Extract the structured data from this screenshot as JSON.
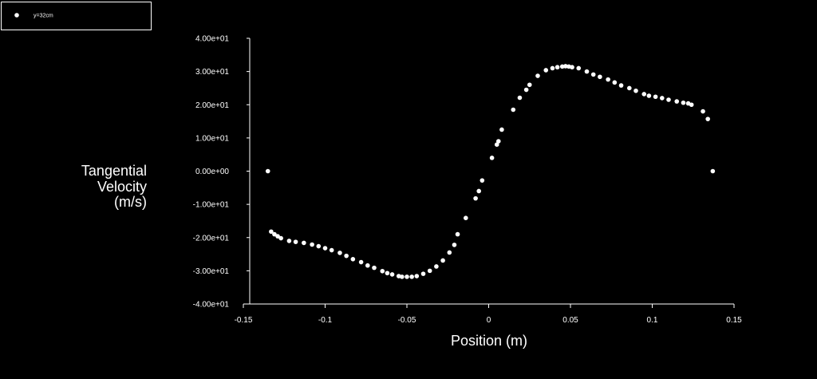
{
  "chart_data": {
    "type": "scatter",
    "xlabel": "Position (m)",
    "ylabel": [
      "Tangential",
      "Velocity",
      "(m/s)"
    ],
    "xlim": [
      -0.15,
      0.15
    ],
    "ylim": [
      -40,
      40
    ],
    "x_ticks": [
      -0.15,
      -0.1,
      -0.05,
      0,
      0.05,
      0.1,
      0.15
    ],
    "x_tick_labels": [
      "-0.15",
      "-0.1",
      "-0.05",
      "0",
      "0.05",
      "0.1",
      "0.15"
    ],
    "y_ticks": [
      40,
      30,
      20,
      10,
      0,
      -10,
      -20,
      -30,
      -40
    ],
    "y_tick_labels": [
      "4.00e+01",
      "3.00e+01",
      "2.00e+01",
      "1.00e+01",
      "0.00e+00",
      "-1.00e+01",
      "-2.00e+01",
      "-3.00e+01",
      "-4.00e+01"
    ],
    "grid": false,
    "legend_position": "top-left",
    "series": [
      {
        "name": "y=32cm",
        "color": "#ffffff",
        "marker": "circle",
        "points": [
          [
            -0.135,
            0
          ],
          [
            -0.133,
            -18.2
          ],
          [
            -0.131,
            -19.0
          ],
          [
            -0.129,
            -19.6
          ],
          [
            -0.127,
            -20.2
          ],
          [
            -0.122,
            -21.0
          ],
          [
            -0.118,
            -21.3
          ],
          [
            -0.113,
            -21.6
          ],
          [
            -0.108,
            -22.1
          ],
          [
            -0.104,
            -22.6
          ],
          [
            -0.1,
            -23.2
          ],
          [
            -0.096,
            -23.8
          ],
          [
            -0.091,
            -24.6
          ],
          [
            -0.087,
            -25.5
          ],
          [
            -0.083,
            -26.5
          ],
          [
            -0.078,
            -27.4
          ],
          [
            -0.074,
            -28.4
          ],
          [
            -0.07,
            -29.1
          ],
          [
            -0.065,
            -30.1
          ],
          [
            -0.062,
            -30.7
          ],
          [
            -0.059,
            -31.1
          ],
          [
            -0.055,
            -31.6
          ],
          [
            -0.053,
            -31.8
          ],
          [
            -0.05,
            -31.8
          ],
          [
            -0.047,
            -31.8
          ],
          [
            -0.044,
            -31.6
          ],
          [
            -0.04,
            -30.9
          ],
          [
            -0.036,
            -30.0
          ],
          [
            -0.032,
            -28.7
          ],
          [
            -0.028,
            -26.9
          ],
          [
            -0.024,
            -24.5
          ],
          [
            -0.021,
            -22.2
          ],
          [
            -0.019,
            -19.0
          ],
          [
            -0.014,
            -14.1
          ],
          [
            -0.008,
            -8.2
          ],
          [
            -0.006,
            -6.0
          ],
          [
            -0.004,
            -2.8
          ],
          [
            0.002,
            4.0
          ],
          [
            0.005,
            8.0
          ],
          [
            0.006,
            9.0
          ],
          [
            0.008,
            12.5
          ],
          [
            0.015,
            18.5
          ],
          [
            0.019,
            22.1
          ],
          [
            0.023,
            24.5
          ],
          [
            0.025,
            26.0
          ],
          [
            0.03,
            28.7
          ],
          [
            0.035,
            30.4
          ],
          [
            0.039,
            31.0
          ],
          [
            0.042,
            31.3
          ],
          [
            0.045,
            31.5
          ],
          [
            0.047,
            31.6
          ],
          [
            0.049,
            31.5
          ],
          [
            0.051,
            31.3
          ],
          [
            0.055,
            31.0
          ],
          [
            0.06,
            30.0
          ],
          [
            0.064,
            29.1
          ],
          [
            0.068,
            28.4
          ],
          [
            0.073,
            27.6
          ],
          [
            0.077,
            26.7
          ],
          [
            0.081,
            25.8
          ],
          [
            0.086,
            25.0
          ],
          [
            0.09,
            24.2
          ],
          [
            0.095,
            23.2
          ],
          [
            0.098,
            22.7
          ],
          [
            0.102,
            22.4
          ],
          [
            0.106,
            22.0
          ],
          [
            0.11,
            21.5
          ],
          [
            0.115,
            21.0
          ],
          [
            0.119,
            20.6
          ],
          [
            0.122,
            20.4
          ],
          [
            0.124,
            20.0
          ],
          [
            0.131,
            18.0
          ],
          [
            0.134,
            15.7
          ],
          [
            0.137,
            0
          ]
        ]
      }
    ]
  }
}
